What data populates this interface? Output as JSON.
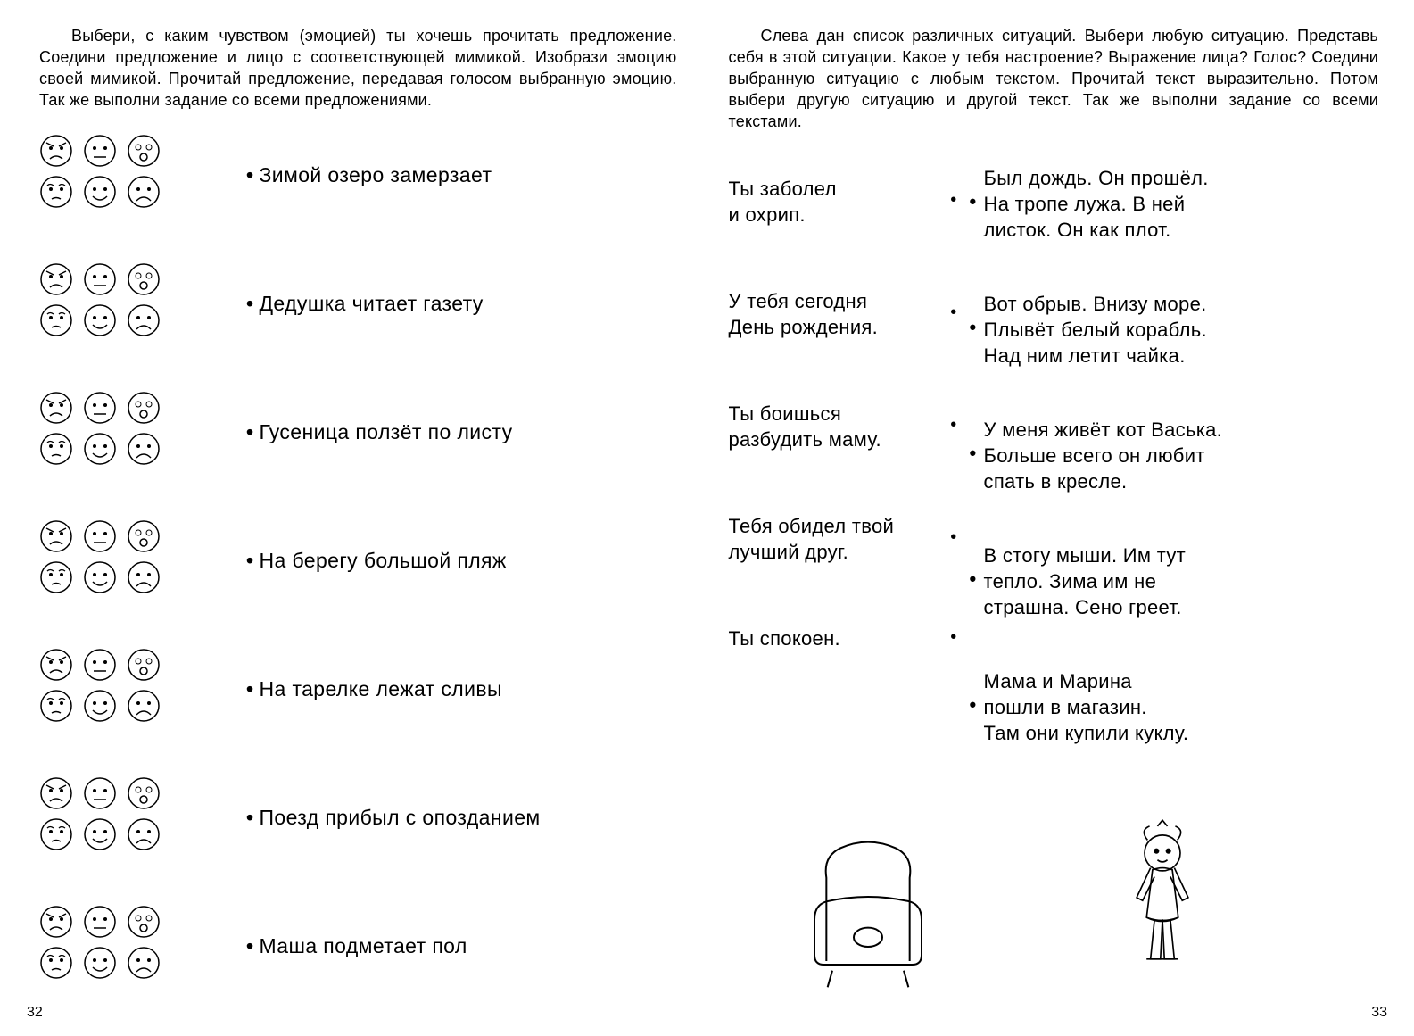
{
  "left": {
    "intro": "Выбери, с каким чувством (эмоцией) ты хочешь прочитать предложение. Соедини предложение и лицо с соответствующей мимикой. Изобрази эмоцию своей мимикой. Прочитай предложение, передавая голосом выбранную эмоцию. Так же выполни задание со всеми предложениями.",
    "sentences": [
      "Зимой озеро замерзает",
      "Дедушка читает газету",
      "Гусеница ползёт по листу",
      "На берегу большой пляж",
      "На тарелке лежат сливы",
      "Поезд прибыл с опозданием",
      "Маша подметает пол"
    ],
    "face_styles": {
      "stroke": "#000",
      "fill": "#fff",
      "rows": [
        [
          "angry",
          "neutral",
          "surprised"
        ],
        [
          "worried",
          "happy",
          "sad"
        ]
      ]
    },
    "page_num": "32"
  },
  "right": {
    "intro": "Слева дан список различных ситуаций. Выбери любую ситуацию. Представь себя в этой ситуации. Какое у тебя настроение? Выражение лица? Голос? Соедини выбранную ситуацию с любым текстом. Прочитай текст выразительно. Потом выбери другую ситуацию и другой текст. Так же выполни задание со всеми текстами.",
    "situations": [
      "Ты заболел\nи охрип.",
      "У тебя сегодня\nДень рождения.",
      "Ты боишься\nразбудить маму.",
      "Тебя обидел твой\nлучший друг.",
      "Ты спокоен."
    ],
    "stories": [
      "Был дождь. Он прошёл.\nНа тропе лужа. В ней\nлисток. Он как плот.",
      "Вот обрыв. Внизу море.\nПлывёт белый корабль.\nНад ним летит чайка.",
      "У меня живёт кот Васька.\nБольше всего он любит\nспать в кресле.",
      "В стогу мыши. Им тут\nтепло. Зима им не\nстрашна. Сено греет.",
      "Мама и Марина\nпошли в магазин.\nТам они купили куклу."
    ],
    "page_num": "33"
  }
}
